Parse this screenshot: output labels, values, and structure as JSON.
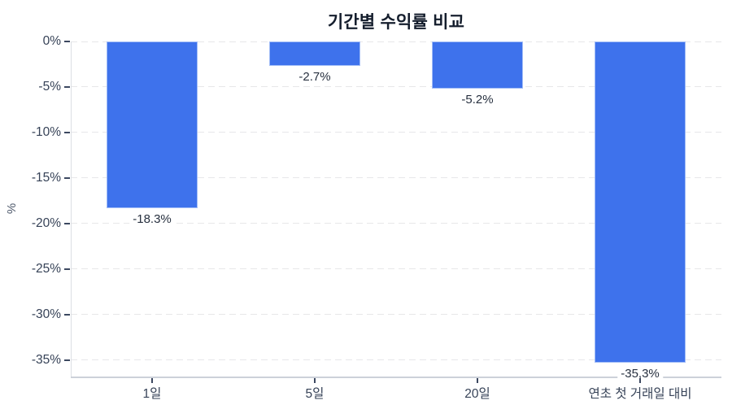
{
  "chart_data": {
    "type": "bar",
    "title": "기간별 수익률 비교",
    "categories": [
      "1일",
      "5일",
      "20일",
      "연초 첫 거래일 대비"
    ],
    "values": [
      -18.3,
      -2.7,
      -5.2,
      -35.3
    ],
    "value_labels": [
      "-18.3%",
      "-2.7%",
      "-5.2%",
      "-35,3%"
    ],
    "xlabel": "",
    "ylabel": "%",
    "ylim": [
      -36.9,
      0
    ],
    "yticks": [
      0,
      -5,
      -10,
      -15,
      -20,
      -25,
      -30,
      -35
    ],
    "ytick_labels": [
      "0%",
      "-5%",
      "-10%",
      "-15%",
      "-20%",
      "-25%",
      "-30%",
      "-35%"
    ],
    "grid": true,
    "grid_style": "dashed",
    "legend": false,
    "bar_color": "#3e72ec",
    "background_color": "#ffffff"
  }
}
